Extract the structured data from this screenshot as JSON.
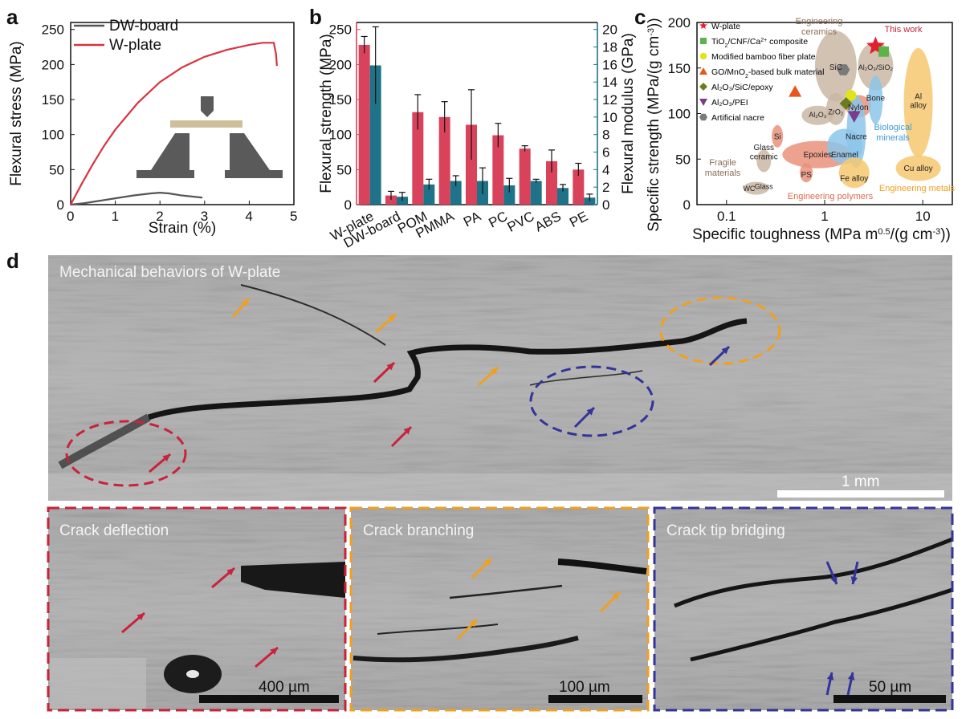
{
  "panels": {
    "a": "a",
    "b": "b",
    "c": "c",
    "d": "d"
  },
  "chart_data": [
    {
      "id": "a",
      "type": "line",
      "xlabel": "Strain (%)",
      "ylabel": "Flexural stress (MPa)",
      "xlim": [
        0,
        5
      ],
      "ylim": [
        0,
        260
      ],
      "xticks": [
        0,
        1,
        2,
        3,
        4,
        5
      ],
      "yticks": [
        0,
        50,
        100,
        150,
        200,
        250
      ],
      "legend_position": "top-left",
      "series": [
        {
          "name": "DW-board",
          "color": "#555555",
          "x": [
            0,
            0.3,
            0.6,
            1.0,
            1.4,
            1.8,
            2.0,
            2.2,
            2.5,
            2.8,
            2.95
          ],
          "y": [
            0,
            2,
            5,
            9,
            13,
            16,
            17,
            16,
            13,
            11,
            10
          ]
        },
        {
          "name": "W-plate",
          "color": "#d9333f",
          "x": [
            0,
            0.25,
            0.5,
            0.75,
            1.0,
            1.5,
            2.0,
            2.5,
            3.0,
            3.5,
            4.0,
            4.3,
            4.55,
            4.6,
            4.62
          ],
          "y": [
            0,
            30,
            58,
            84,
            107,
            145,
            175,
            196,
            211,
            221,
            228,
            231,
            231,
            215,
            198
          ]
        }
      ],
      "inset_icon": "three-point-bending-fixture"
    },
    {
      "id": "b",
      "type": "bar",
      "ylabel": "Flexural strength (MPa)",
      "y2label": "Flexural modulus (GPa)",
      "ylim": [
        0,
        260
      ],
      "y2lim": [
        0,
        20.8
      ],
      "yticks": [
        0,
        50,
        100,
        150,
        200,
        250
      ],
      "y2ticks": [
        0,
        2,
        4,
        6,
        8,
        10,
        12,
        14,
        16,
        18,
        20
      ],
      "categories": [
        "W-plate",
        "DW-board",
        "POM",
        "PMMA",
        "PA",
        "PC",
        "PVC",
        "ABS",
        "PE"
      ],
      "series": [
        {
          "name": "Flexural strength",
          "axis": "left",
          "color": "#d9425b",
          "values": [
            228,
            13,
            132,
            125,
            114,
            99,
            80,
            62,
            50
          ],
          "errors": [
            12,
            6,
            25,
            22,
            50,
            17,
            4,
            16,
            9
          ]
        },
        {
          "name": "Flexural modulus",
          "axis": "right",
          "color": "#1e7388",
          "values": [
            15.9,
            0.9,
            2.3,
            2.7,
            2.7,
            2.2,
            2.7,
            1.9,
            0.8
          ],
          "errors": [
            4.4,
            0.5,
            0.6,
            0.6,
            1.5,
            0.8,
            0.2,
            0.4,
            0.4
          ]
        }
      ]
    },
    {
      "id": "c",
      "type": "scatter",
      "xlabel": "Specific toughness (MPa m",
      "xlabel_sup": "0.5",
      "xlabel_tail": "/(g cm",
      "xlabel_sup2": "-3",
      "xlabel_end": "))",
      "ylabel": "Specific strength (MPa/(g cm",
      "ylabel_sup": "-3",
      "ylabel_end": "))",
      "xscale": "log",
      "xlim": [
        0.05,
        20
      ],
      "ylim": [
        0,
        200
      ],
      "xtick_labels": [
        "0.1",
        "1",
        "10"
      ],
      "yticks": [
        0,
        50,
        100,
        150,
        200
      ],
      "points": [
        {
          "name": "W-plate",
          "marker": "star",
          "color": "#e0202e",
          "x": 3.3,
          "y": 174
        },
        {
          "name": "TiO2/CNF/Ca2+ composite",
          "marker": "square",
          "color": "#5ab447",
          "x": 4.0,
          "y": 168
        },
        {
          "name": "Modified bamboo fiber plate",
          "marker": "circle",
          "color": "#e3e31a",
          "x": 1.85,
          "y": 120
        },
        {
          "name": "GO/MnO2-based bulk material",
          "marker": "triangle",
          "color": "#e8561c",
          "x": 0.5,
          "y": 124
        },
        {
          "name": "Al2O3/SiC/epoxy",
          "marker": "diamond",
          "color": "#6d7a1e",
          "x": 1.65,
          "y": 111
        },
        {
          "name": "Al2O3/PEI",
          "marker": "triangle-down",
          "color": "#7a3d8a",
          "x": 2.0,
          "y": 97
        },
        {
          "name": "Artificial nacre",
          "marker": "hexagon",
          "color": "#7a7a7a",
          "x": 1.55,
          "y": 148
        }
      ],
      "legend": [
        {
          "t": "W-plate"
        },
        {
          "t": "TiO",
          "s1": "2",
          "t2": "/CNF/Ca",
          "s2": "2+",
          "t3": " composite"
        },
        {
          "t": "Modified bamboo fiber plate"
        },
        {
          "t": "GO/MnO",
          "s1": "2",
          "t2": "-based bulk material"
        },
        {
          "t": "Al₂O₃/SiC/epoxy"
        },
        {
          "t": "Al₂O₃/PEI"
        },
        {
          "t": "Artificial nacre"
        }
      ],
      "annotations": {
        "this_work": "This work",
        "eng_ceramics_1": "Engineering",
        "eng_ceramics_2": "ceramics",
        "bio_1": "Biological",
        "bio_2": "minerals",
        "fragile_1": "Fragile",
        "fragile_2": "materials",
        "eng_polymers": "Engineering polymers",
        "eng_metals": "Engineering metals",
        "sic": "SiC",
        "al2o3_sio2": "Al₂O₃/SiO₂",
        "nylon": "Nylon",
        "bone": "Bone",
        "al_alloy_1": "Al",
        "al_alloy_2": "alloy",
        "al2o3": "Al₂O₃",
        "zro2": "ZrO₂",
        "si": "Si",
        "glass_ceramic_1": "Glass",
        "glass_ceramic_2": "ceramic",
        "epoxies": "Epoxies",
        "enamel": "Enamel",
        "nacre": "Nacre",
        "ps": "PS",
        "fe_alloy": "Fe alloy",
        "cu_alloy": "Cu alloy",
        "wc": "WC",
        "glass": "Glass"
      }
    }
  ],
  "micrographs": {
    "main_title": "Mechanical behaviors of W-plate",
    "main_scale": "1 mm",
    "inset1_title": "Crack deflection",
    "inset1_scale": "400 µm",
    "inset2_title": "Crack branching",
    "inset2_scale": "100 µm",
    "inset3_title": "Crack tip bridging",
    "inset3_scale": "50 µm",
    "colors": {
      "red": "#c8233a",
      "orange": "#f0a020",
      "blue": "#33349a"
    }
  }
}
